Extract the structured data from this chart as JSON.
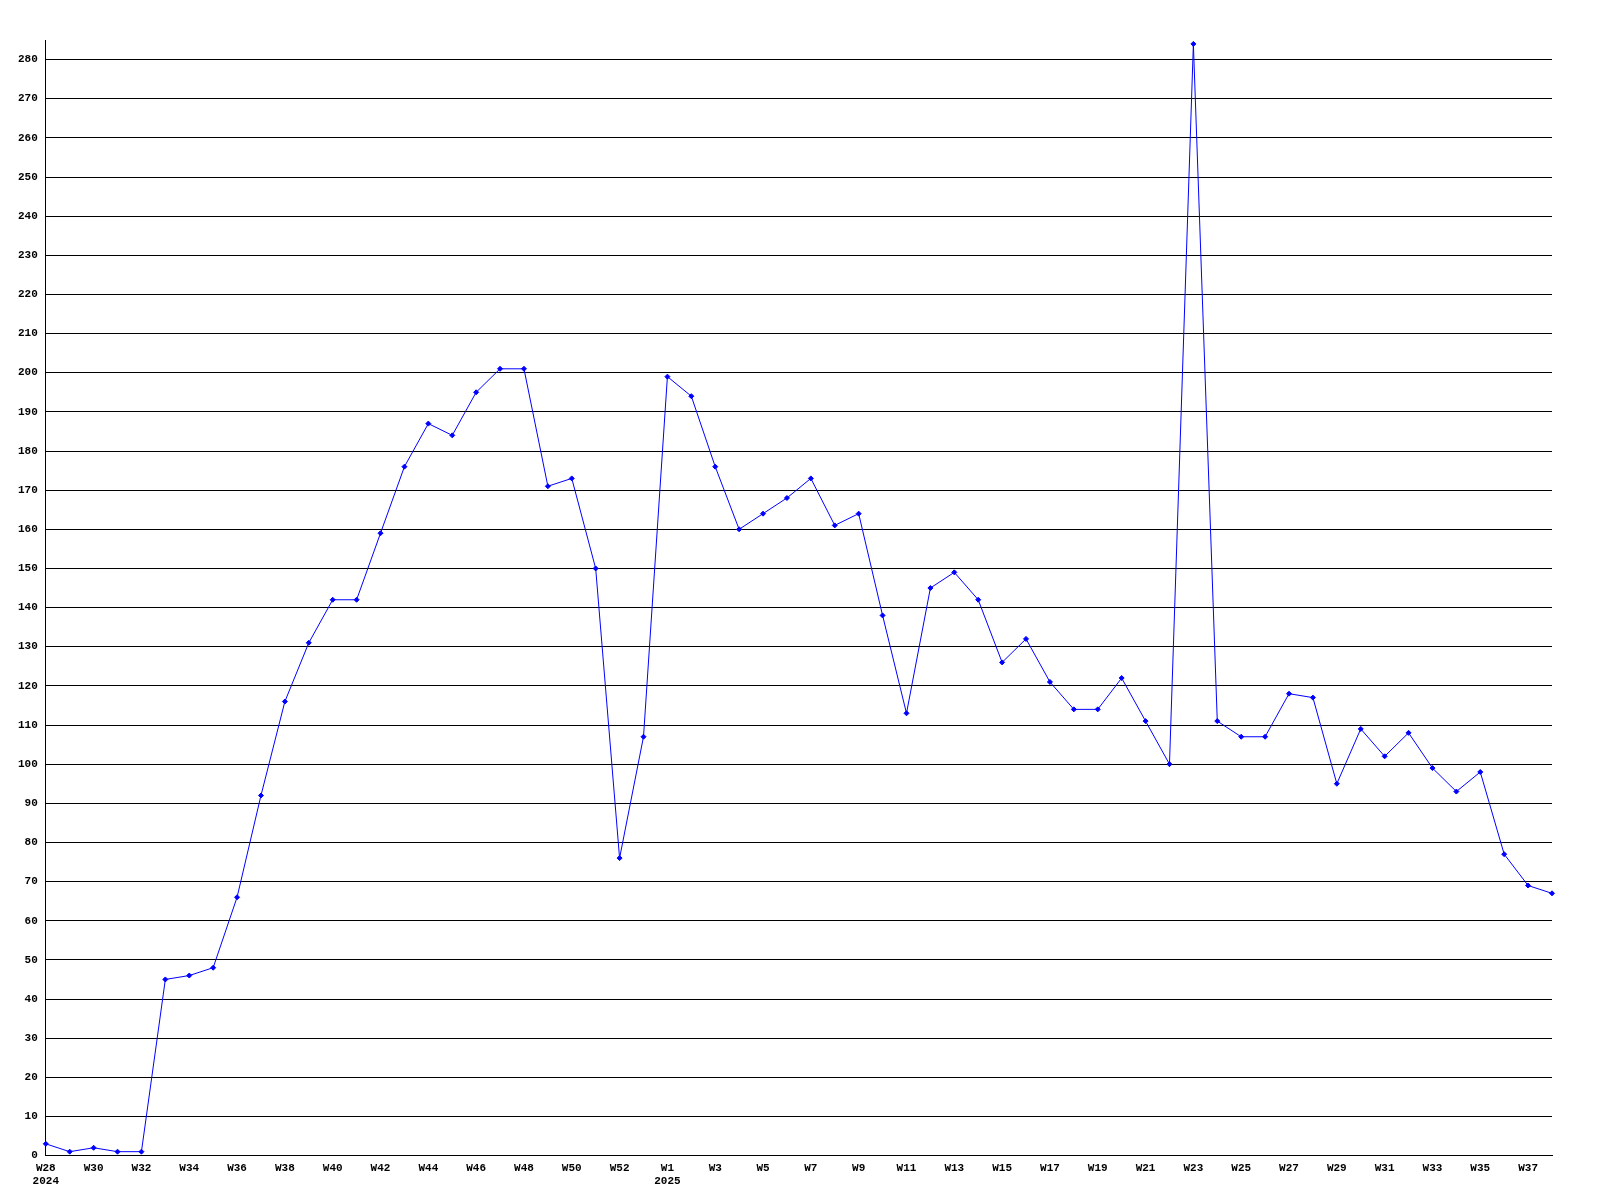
{
  "chart_data": {
    "type": "line",
    "categories": [
      "W28\n2024",
      null,
      "W30",
      null,
      "W32",
      null,
      "W34",
      null,
      "W36",
      null,
      "W38",
      null,
      "W40",
      null,
      "W42",
      null,
      "W44",
      null,
      "W46",
      null,
      "W48",
      null,
      "W50",
      null,
      "W52",
      null,
      "W1\n2025",
      null,
      "W3",
      null,
      "W5",
      null,
      "W7",
      null,
      "W9",
      null,
      "W11",
      null,
      "W13",
      null,
      "W15",
      null,
      "W17",
      null,
      "W19",
      null,
      "W21",
      null,
      "W23",
      null,
      "W25",
      null,
      "W27",
      null,
      "W29",
      null,
      "W31",
      null,
      "W33",
      null,
      "W35",
      null,
      "W37",
      null
    ],
    "series": [
      {
        "color": "#0000ff",
        "values": [
          3,
          1,
          2,
          1,
          1,
          45,
          46,
          48,
          66,
          92,
          116,
          131,
          142,
          142,
          159,
          176,
          187,
          184,
          195,
          201,
          201,
          171,
          173,
          150,
          76,
          107,
          199,
          194,
          176,
          160,
          164,
          168,
          173,
          161,
          164,
          138,
          113,
          145,
          149,
          142,
          126,
          132,
          121,
          114,
          114,
          122,
          111,
          100,
          284,
          111,
          107,
          107,
          118,
          117,
          95,
          109,
          102,
          108,
          99,
          93,
          98,
          77,
          69,
          67
        ]
      }
    ],
    "ylim": [
      0,
      285
    ],
    "yticks": [
      0,
      10,
      20,
      30,
      40,
      50,
      60,
      70,
      80,
      90,
      100,
      110,
      120,
      130,
      140,
      150,
      160,
      170,
      180,
      190,
      200,
      210,
      220,
      230,
      240,
      250,
      260,
      270,
      280
    ],
    "grid": "y",
    "legend": false,
    "marker": "diamond",
    "line_style": "solid"
  }
}
